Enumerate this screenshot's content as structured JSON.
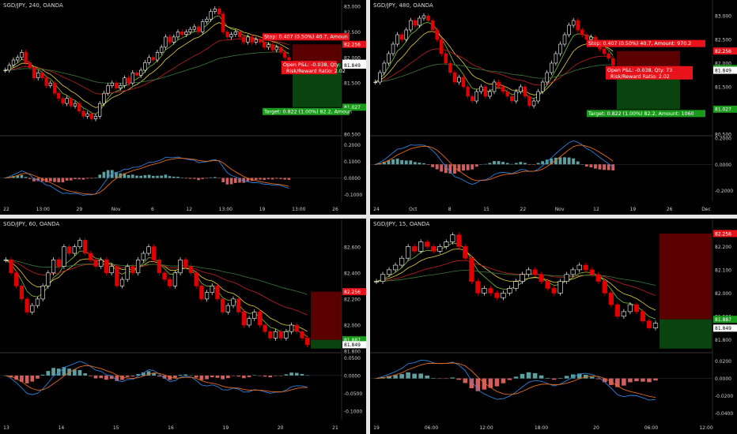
{
  "colors": {
    "background": "#000000",
    "up_candle": "#ffffff",
    "down_candle": "#e00000",
    "ema_green": "#7dbf3a",
    "ema_yellow": "#e8d040",
    "ema_red": "#c02020",
    "ema_slow": "#3a7a3a",
    "macd_line": "#2f7fd9",
    "signal_line": "#e26a1a",
    "hist_up": "#5e9f9f",
    "hist_down": "#d06060",
    "stop_zone": "#7a0000",
    "target_zone": "#0a4a10",
    "stop_label": "#e8121a",
    "target_label": "#1a9a1a",
    "axis_text": "#cfcfcf"
  },
  "chart_data": [
    {
      "type": "candlestick",
      "title": "SGD/JPY, 240, OANDA",
      "price_ylim": [
        80.5,
        83.0
      ],
      "price_ticks": [
        "83.000",
        "82.500",
        "82.000",
        "81.500",
        "81.000",
        "80.500"
      ],
      "price_tags": [
        {
          "text": "82.256",
          "kind": "stop"
        },
        {
          "text": "81.887",
          "kind": "neutral"
        },
        {
          "text": "81.849",
          "kind": "neutral"
        },
        {
          "text": "81.027",
          "kind": "target"
        }
      ],
      "x_ticks": [
        "22",
        "13:00",
        "29",
        "Nov",
        "6",
        "12",
        "13:00",
        "19",
        "13:00",
        "26"
      ],
      "macd_ylim": [
        -0.14,
        0.24
      ],
      "macd_ticks": [
        "0.2000",
        "0.1000",
        "0.0000",
        "-0.1000"
      ],
      "position_labels": {
        "stop": "Stop: 0.407 (0.50%) 40.7, Amoun",
        "open_pnl": "Open P&L: -0.038, Qty: 7",
        "rr": "Risk/Reward Ratio: 2.02",
        "target": "Target: 0.822 (1.00%) 82.2, Amoun"
      },
      "closes": [
        81.75,
        81.85,
        81.95,
        82.0,
        82.1,
        81.9,
        81.8,
        81.6,
        81.7,
        81.6,
        81.45,
        81.5,
        81.3,
        81.2,
        81.1,
        81.2,
        81.05,
        81.1,
        80.95,
        80.85,
        80.9,
        80.8,
        80.85,
        81.1,
        81.3,
        81.45,
        81.5,
        81.4,
        81.45,
        81.6,
        81.5,
        81.7,
        81.65,
        81.75,
        81.9,
        82.0,
        81.95,
        82.1,
        82.2,
        82.4,
        82.3,
        82.4,
        82.5,
        82.45,
        82.5,
        82.55,
        82.6,
        82.5,
        82.7,
        82.75,
        82.9,
        82.95,
        82.85,
        82.5,
        82.4,
        82.45,
        82.5,
        82.4,
        82.3,
        82.4,
        82.3,
        82.35,
        82.3,
        82.2,
        82.25,
        82.15,
        82.2,
        82.1,
        82.0,
        81.95
      ]
    },
    {
      "type": "candlestick",
      "title": "SGD/JPY, 480, OANDA",
      "price_ylim": [
        80.5,
        83.2
      ],
      "price_ticks": [
        "83.000",
        "82.500",
        "82.000",
        "81.500",
        "81.000",
        "80.500"
      ],
      "price_tags": [
        {
          "text": "82.256",
          "kind": "stop"
        },
        {
          "text": "81.887",
          "kind": "target"
        },
        {
          "text": "81.849",
          "kind": "neutral"
        },
        {
          "text": "81.027",
          "kind": "target"
        }
      ],
      "x_ticks": [
        "24",
        "Oct",
        "8",
        "15",
        "22",
        "Nov",
        "12",
        "19",
        "26",
        "Dec"
      ],
      "macd_ylim": [
        -0.28,
        0.2
      ],
      "macd_ticks": [
        "0.2000",
        "0.0000",
        "-0.2000"
      ],
      "position_labels": {
        "stop": "Stop: 0.407 (0.50%) 40.7, Amount: 970.2",
        "open_pnl": "Open P&L: -0.038, Qty: 73",
        "rr": "Risk/Reward Ratio: 2.02",
        "target": "Target: 0.822 (1.00%) 82.2, Amount: 1060"
      },
      "closes": [
        81.6,
        81.8,
        82.0,
        82.2,
        82.4,
        82.6,
        82.5,
        82.7,
        82.9,
        82.8,
        82.95,
        83.0,
        82.9,
        82.7,
        82.5,
        82.2,
        82.0,
        81.8,
        81.6,
        81.7,
        81.5,
        81.3,
        81.2,
        81.4,
        81.5,
        81.3,
        81.4,
        81.6,
        81.5,
        81.4,
        81.3,
        81.2,
        81.4,
        81.5,
        81.3,
        81.1,
        81.2,
        81.4,
        81.6,
        81.8,
        82.0,
        82.2,
        82.4,
        82.6,
        82.8,
        82.9,
        82.7,
        82.6,
        82.5,
        82.55,
        82.4,
        82.3,
        82.2,
        82.1,
        81.95
      ]
    },
    {
      "type": "candlestick",
      "title": "SGD/JPY, 60, OANDA",
      "price_ylim": [
        81.8,
        82.78
      ],
      "price_ticks": [
        "82.600",
        "82.400",
        "82.200",
        "82.000",
        "81.800"
      ],
      "price_tags": [
        {
          "text": "82.256",
          "kind": "stop"
        },
        {
          "text": "81.887",
          "kind": "target"
        },
        {
          "text": "81.849",
          "kind": "neutral"
        }
      ],
      "x_ticks": [
        "13",
        "14",
        "15",
        "16",
        "19",
        "20",
        "21"
      ],
      "macd_ylim": [
        -0.125,
        0.06
      ],
      "macd_ticks": [
        "0.0500",
        "0.0000",
        "-0.0500",
        "-0.1000"
      ],
      "closes": [
        82.5,
        82.4,
        82.3,
        82.2,
        82.1,
        82.15,
        82.2,
        82.3,
        82.4,
        82.5,
        82.45,
        82.6,
        82.55,
        82.6,
        82.65,
        82.55,
        82.5,
        82.45,
        82.5,
        82.4,
        82.45,
        82.3,
        82.35,
        82.45,
        82.4,
        82.5,
        82.55,
        82.6,
        82.5,
        82.4,
        82.35,
        82.3,
        82.4,
        82.5,
        82.45,
        82.4,
        82.3,
        82.2,
        82.25,
        82.3,
        82.2,
        82.1,
        82.15,
        82.2,
        82.1,
        82.0,
        82.05,
        82.1,
        82.0,
        81.95,
        81.9,
        81.95,
        81.9,
        81.95,
        82.0,
        81.95,
        81.9,
        81.85
      ]
    },
    {
      "type": "candlestick",
      "title": "SGD/JPY, 15, OANDA",
      "price_ylim": [
        81.75,
        82.3
      ],
      "price_ticks": [
        "82.200",
        "82.100",
        "82.000",
        "81.900",
        "81.800"
      ],
      "price_tags": [
        {
          "text": "82.256",
          "kind": "stop"
        },
        {
          "text": "81.887",
          "kind": "target"
        },
        {
          "text": "81.849",
          "kind": "neutral"
        }
      ],
      "x_ticks": [
        "19",
        "06:00",
        "12:00",
        "18:00",
        "20",
        "06:00",
        "12:00"
      ],
      "macd_ylim": [
        -0.048,
        0.028
      ],
      "macd_ticks": [
        "0.0200",
        "0.0000",
        "-0.0200",
        "-0.0400"
      ],
      "closes": [
        82.05,
        82.08,
        82.1,
        82.12,
        82.15,
        82.2,
        82.18,
        82.22,
        82.2,
        82.18,
        82.2,
        82.22,
        82.25,
        82.2,
        82.15,
        82.05,
        82.0,
        82.02,
        82.0,
        81.98,
        82.0,
        82.02,
        82.05,
        82.08,
        82.1,
        82.08,
        82.05,
        82.02,
        82.0,
        82.05,
        82.08,
        82.1,
        82.12,
        82.1,
        82.08,
        82.05,
        82.0,
        81.95,
        81.9,
        81.92,
        81.95,
        81.92,
        81.88,
        81.85,
        81.87
      ]
    }
  ]
}
